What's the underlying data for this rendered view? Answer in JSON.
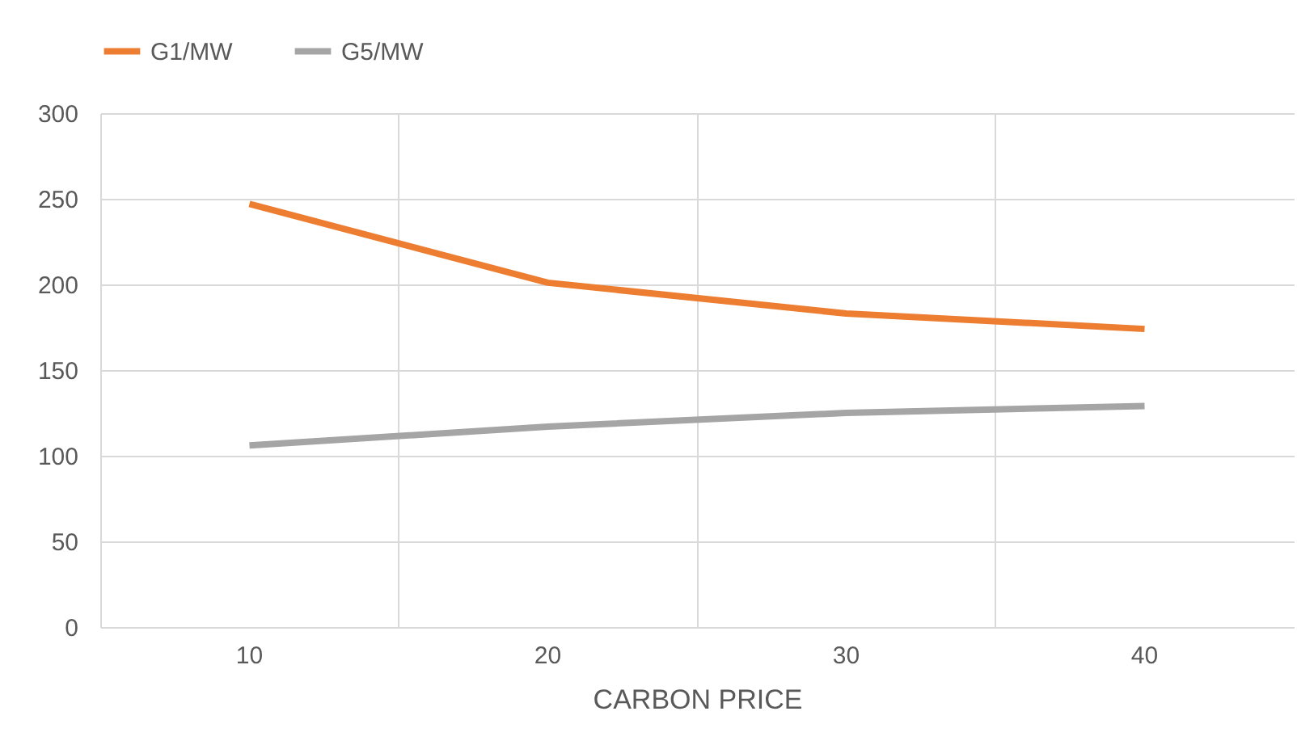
{
  "chart_data": {
    "type": "line",
    "xlabel": "CARBON PRICE",
    "categories": [
      "10",
      "20",
      "30",
      "40"
    ],
    "series": [
      {
        "name": "G1/MW",
        "color": "#ed7d31",
        "values": [
          247,
          201,
          183,
          174
        ]
      },
      {
        "name": "G5/MW",
        "color": "#a5a5a5",
        "values": [
          106,
          117,
          125,
          129
        ]
      }
    ],
    "ylim": [
      0,
      300
    ],
    "yticks": [
      0,
      50,
      100,
      150,
      200,
      250,
      300
    ],
    "grid": true,
    "legend": "top",
    "marker": "none",
    "line_style": "solid"
  }
}
